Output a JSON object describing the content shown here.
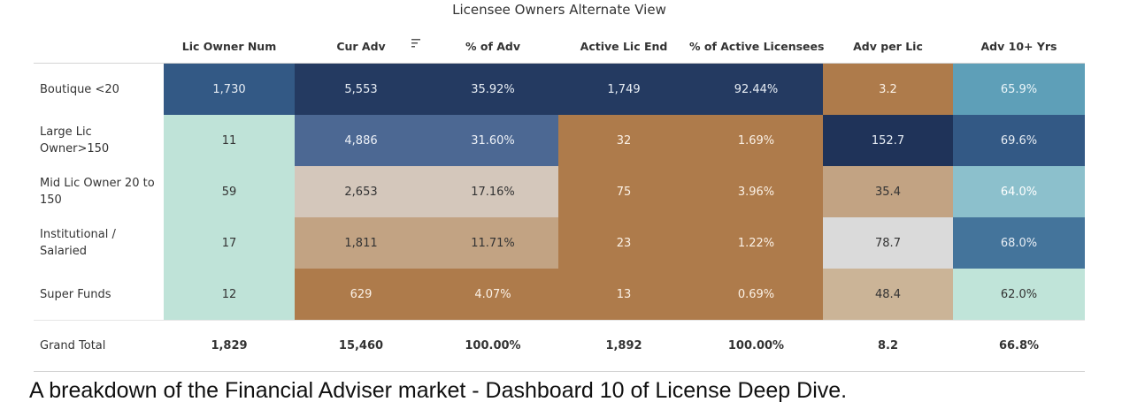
{
  "view": {
    "title": "Licensee Owners Alternate View",
    "caption": "A breakdown of the Financial Adviser market - Dashboard 10 of License Deep Dive."
  },
  "columns": [
    "Lic Owner Num",
    "Cur Adv",
    "% of Adv",
    "Active Lic End",
    "% of Active Licensees",
    "Adv per Lic",
    "Adv 10+ Yrs"
  ],
  "sort_icon": "sort-descending-icon",
  "rows": [
    {
      "label": "Boutique <20",
      "values": [
        "1,730",
        "5,553",
        "35.92%",
        "1,749",
        "92.44%",
        "3.2",
        "65.9%"
      ],
      "colors": [
        "#335985",
        "#243a61",
        "#243a61",
        "#243a61",
        "#243a61",
        "#ae7b4b",
        "#5e9fb8"
      ],
      "text_colors": [
        "#e8eef5",
        "#e8eef5",
        "#e8eef5",
        "#e8eef5",
        "#e8eef5",
        "#fbf1e6",
        "#eaf5f9"
      ]
    },
    {
      "label": "Large Lic Owner>150",
      "values": [
        "11",
        "4,886",
        "31.60%",
        "32",
        "1.69%",
        "152.7",
        "69.6%"
      ],
      "colors": [
        "#bfe3d8",
        "#4c6893",
        "#4c6893",
        "#ae7b4b",
        "#ae7b4b",
        "#1f3359",
        "#335985"
      ],
      "text_colors": [
        "#333333",
        "#eef2f8",
        "#eef2f8",
        "#fbf1e6",
        "#fbf1e6",
        "#e8eef5",
        "#e8eef5"
      ]
    },
    {
      "label": "Mid Lic Owner 20 to 150",
      "values": [
        "59",
        "2,653",
        "17.16%",
        "75",
        "3.96%",
        "35.4",
        "64.0%"
      ],
      "colors": [
        "#bfe3d8",
        "#d4c7bb",
        "#d4c7bb",
        "#ae7b4b",
        "#ae7b4b",
        "#c2a383",
        "#8cc0cc"
      ],
      "text_colors": [
        "#333333",
        "#333333",
        "#333333",
        "#fbf1e6",
        "#fbf1e6",
        "#333333",
        "#ffffff"
      ]
    },
    {
      "label": "Institutional / Salaried",
      "values": [
        "17",
        "1,811",
        "11.71%",
        "23",
        "1.22%",
        "78.7",
        "68.0%"
      ],
      "colors": [
        "#bfe3d8",
        "#c2a383",
        "#c2a383",
        "#ae7b4b",
        "#ae7b4b",
        "#dadada",
        "#44749b"
      ],
      "text_colors": [
        "#333333",
        "#333333",
        "#333333",
        "#fbf1e6",
        "#fbf1e6",
        "#333333",
        "#e8eef5"
      ]
    },
    {
      "label": "Super Funds",
      "values": [
        "12",
        "629",
        "4.07%",
        "13",
        "0.69%",
        "48.4",
        "62.0%"
      ],
      "colors": [
        "#bfe3d8",
        "#ae7b4b",
        "#ae7b4b",
        "#ae7b4b",
        "#ae7b4b",
        "#cbb497",
        "#c0e4d9"
      ],
      "text_colors": [
        "#333333",
        "#fbf1e6",
        "#fbf1e6",
        "#fbf1e6",
        "#fbf1e6",
        "#333333",
        "#333333"
      ]
    }
  ],
  "total": {
    "label": "Grand Total",
    "values": [
      "1,829",
      "15,460",
      "100.00%",
      "1,892",
      "100.00%",
      "8.2",
      "66.8%"
    ]
  }
}
